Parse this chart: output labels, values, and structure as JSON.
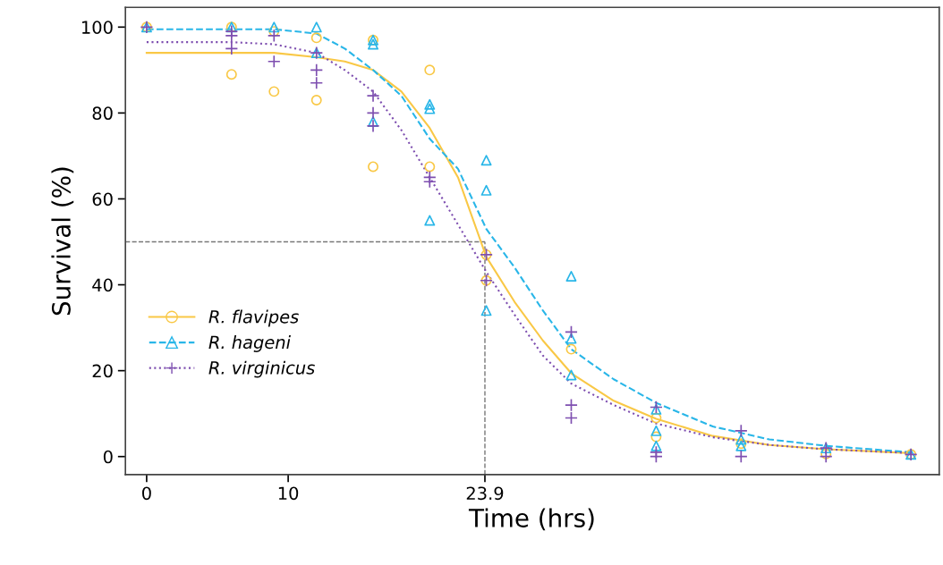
{
  "chart_data": {
    "type": "scatter",
    "xlabel": "Time (hrs)",
    "ylabel": "Survival (%)",
    "xlim": [
      -1.5,
      56
    ],
    "ylim": [
      -4.2,
      104.6
    ],
    "xticks": [
      0,
      10,
      23.9
    ],
    "yticks": [
      0,
      20,
      40,
      60,
      80,
      100
    ],
    "grid": false,
    "legend": "left",
    "series": [
      {
        "name": "R. flavipes",
        "marker": "circle",
        "color": "#f9c846",
        "x": [
          0,
          6,
          6,
          9,
          9,
          12,
          12,
          16,
          16,
          20,
          20,
          24,
          24,
          30,
          36,
          36,
          42,
          48,
          54
        ],
        "values": [
          100,
          100,
          89,
          99,
          85,
          97.5,
          83,
          97,
          67.5,
          90,
          67.5,
          47,
          41,
          25,
          9,
          4.6,
          3,
          0.6,
          0.5
        ]
      },
      {
        "name": "R. hageni",
        "marker": "triangle",
        "color": "#29b6e8",
        "x": [
          0,
          6,
          9,
          12,
          12,
          16,
          16,
          16,
          20,
          20,
          20,
          24,
          24,
          24,
          30,
          30,
          30,
          36,
          36,
          36,
          42,
          42,
          48,
          54
        ],
        "values": [
          100,
          100,
          100,
          100,
          94,
          97,
          96,
          78,
          82,
          81,
          55,
          69,
          62,
          34,
          42,
          27.5,
          19,
          11,
          6,
          2.5,
          4,
          2.5,
          2,
          0.5
        ]
      },
      {
        "name": "R. virginicus",
        "marker": "cross",
        "color": "#7e4fb0",
        "x": [
          0,
          6,
          6,
          6,
          9,
          9,
          12,
          12,
          12,
          16,
          16,
          16,
          20,
          20,
          24,
          24,
          30,
          30,
          30,
          36,
          36,
          36,
          42,
          42,
          48,
          48,
          54
        ],
        "values": [
          100,
          99,
          98,
          95,
          98,
          92,
          94,
          90,
          87,
          84,
          80,
          77,
          65,
          64,
          47,
          41,
          29,
          12,
          9,
          11.5,
          1,
          0,
          6,
          0,
          2,
          0,
          0.5
        ]
      },
      {
        "type": "line",
        "line_style": "solid",
        "color": "#f9c846",
        "x": [
          0,
          6,
          9,
          12,
          14,
          16,
          18,
          20,
          22,
          24,
          26,
          28,
          30,
          33,
          36,
          40,
          44,
          48,
          54
        ],
        "values": [
          94,
          94,
          94,
          93,
          92,
          90,
          85,
          76.5,
          65,
          46.5,
          36,
          27,
          19.4,
          13,
          8.8,
          4.8,
          2.7,
          1.7,
          0.8
        ]
      },
      {
        "type": "line",
        "line_style": "dashed",
        "color": "#29b6e8",
        "x": [
          0,
          6,
          9,
          12,
          14,
          16,
          18,
          20,
          22,
          24,
          26,
          28,
          30,
          33,
          36,
          40,
          44,
          48,
          54
        ],
        "values": [
          99.5,
          99.5,
          99.5,
          98.5,
          95,
          90,
          84,
          74,
          67,
          53,
          44,
          34,
          25,
          18,
          12.5,
          7,
          4,
          2.5,
          1
        ]
      },
      {
        "type": "line",
        "line_style": "dotted",
        "color": "#7e4fb0",
        "x": [
          0,
          6,
          9,
          12,
          14,
          16,
          18,
          20,
          22,
          24,
          26,
          28,
          30,
          33,
          36,
          40,
          44,
          48,
          54
        ],
        "values": [
          96.5,
          96.5,
          96,
          94,
          90,
          85,
          76,
          65,
          54,
          43,
          33,
          23.5,
          17,
          12,
          7.7,
          4.5,
          2.7,
          1.7,
          0.8
        ]
      }
    ],
    "ref_lines": [
      {
        "axis": "y",
        "value": 50,
        "color": "#777777",
        "line_style": "dashed"
      },
      {
        "axis": "x",
        "value": 23.9,
        "color": "#777777",
        "line_style": "dashed"
      }
    ]
  }
}
